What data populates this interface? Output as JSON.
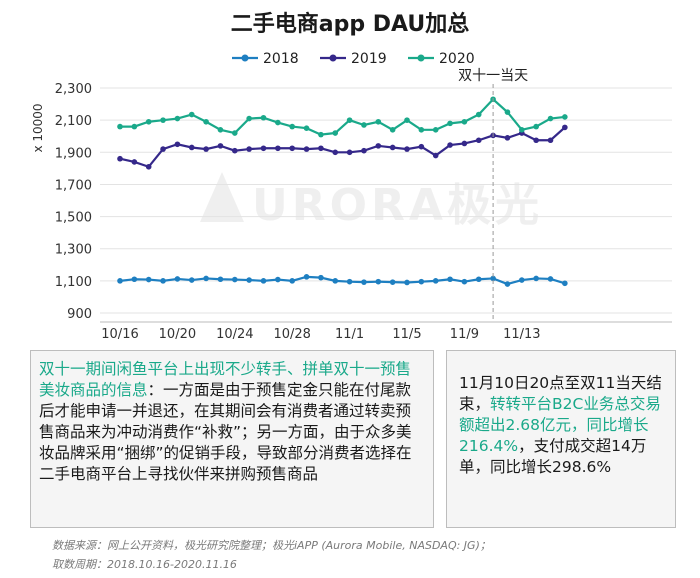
{
  "chart_data": {
    "type": "line",
    "title": "二手电商app DAU加总",
    "ylabel": "x 10000",
    "ylim": [
      900,
      2300
    ],
    "yticks": [
      "900",
      "1,100",
      "1,300",
      "1,500",
      "1,700",
      "1,900",
      "2,100",
      "2,300"
    ],
    "ytick_values": [
      900,
      1100,
      1300,
      1500,
      1700,
      1900,
      2100,
      2300
    ],
    "xticks": [
      "10/16",
      "10/20",
      "10/24",
      "10/28",
      "11/1",
      "11/5",
      "11/9",
      "11/13"
    ],
    "xtick_index": [
      0,
      4,
      8,
      12,
      16,
      20,
      24,
      28
    ],
    "legend_position": "top",
    "annotation": "双十一当天",
    "annotation_index": 26,
    "colors": {
      "2018": "#1e7fc1",
      "2019": "#35288a",
      "2020": "#1aa98a"
    },
    "series": [
      {
        "name": "2018",
        "values": [
          1100,
          1110,
          1108,
          1100,
          1112,
          1105,
          1115,
          1110,
          1108,
          1105,
          1100,
          1108,
          1100,
          1125,
          1120,
          1100,
          1095,
          1092,
          1095,
          1092,
          1090,
          1095,
          1100,
          1110,
          1095,
          1110,
          1115,
          1080,
          1105,
          1115,
          1112,
          1085
        ]
      },
      {
        "name": "2019",
        "values": [
          1860,
          1840,
          1810,
          1920,
          1950,
          1930,
          1920,
          1940,
          1910,
          1920,
          1925,
          1925,
          1925,
          1920,
          1925,
          1900,
          1900,
          1910,
          1940,
          1930,
          1920,
          1935,
          1880,
          1945,
          1955,
          1975,
          2005,
          1990,
          2020,
          1975,
          1975,
          2055
        ]
      },
      {
        "name": "2020",
        "values": [
          2060,
          2060,
          2090,
          2100,
          2110,
          2135,
          2090,
          2040,
          2020,
          2110,
          2115,
          2085,
          2060,
          2050,
          2010,
          2020,
          2100,
          2070,
          2090,
          2040,
          2100,
          2040,
          2040,
          2080,
          2090,
          2135,
          2230,
          2150,
          2040,
          2060,
          2110,
          2120
        ]
      }
    ]
  },
  "left_box": {
    "heading": "双十一期间闲鱼平台上出现不少转手、拼单双十一预售美妆商品的信息",
    "body": "：一方面是由于预售定金只能在付尾款后才能申请一并退还，在其期间会有消费者通过转卖预售商品来为冲动消费作“补救”；另一方面，由于众多美妆品牌采用“捆绑”的促销手段，导致部分消费者选择在二手电商平台上寻找伙伴来拼购预售商品"
  },
  "right_box": {
    "part1": "11月10日20点至双11当天结束，",
    "highlight": "转转平台B2C业务总交易额超出2.68亿元，同比增长216.4%",
    "part2": "，支付成交超14万单，同比增长298.6%"
  },
  "footer": {
    "source": "数据来源：网上公开资料，极光研究院整理；极光iAPP (Aurora Mobile, NASDAQ: JG)；",
    "period": "取数周期：2018.10.16-2020.11.16"
  },
  "watermark": "URORA极光"
}
